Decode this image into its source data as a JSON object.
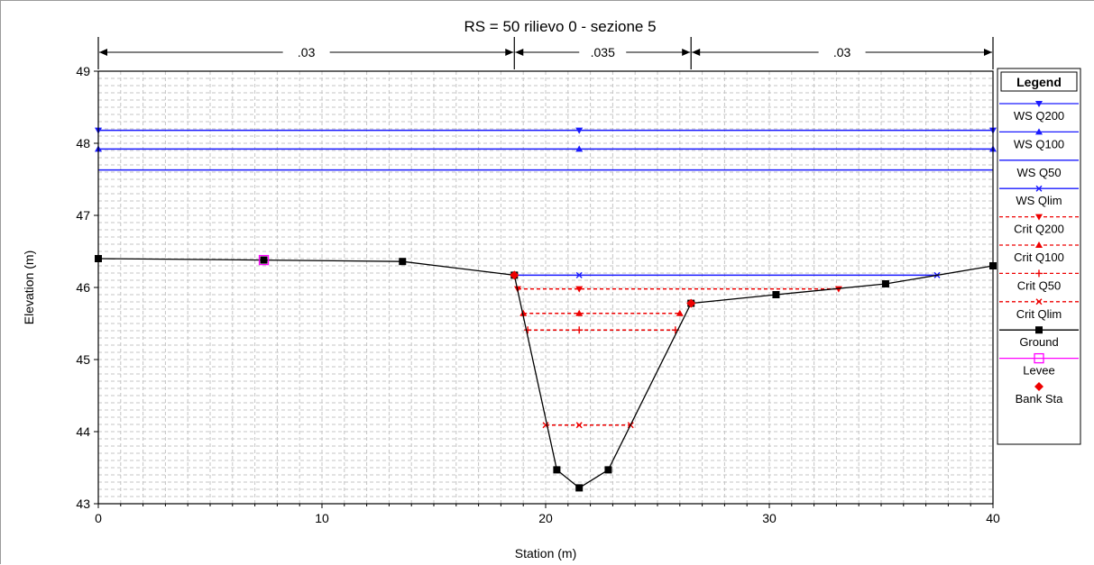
{
  "chart_data": {
    "type": "line",
    "title": "RS = 50    rilievo 0 - sezione 5",
    "xlabel": "Station (m)",
    "ylabel": "Elevation (m)",
    "xlim": [
      0,
      40
    ],
    "ylim": [
      43,
      49
    ],
    "x_ticks": [
      0,
      10,
      20,
      30,
      40
    ],
    "y_ticks": [
      43,
      44,
      45,
      46,
      47,
      48,
      49
    ],
    "grid": true,
    "legend_title": "Legend",
    "legend_position": "right",
    "manning": [
      {
        "from": 0,
        "to": 18.6,
        "label": ".03"
      },
      {
        "from": 18.6,
        "to": 26.5,
        "label": ".035"
      },
      {
        "from": 26.5,
        "to": 40,
        "label": ".03"
      }
    ],
    "series": [
      {
        "name": "WS Q200",
        "kind": "ws",
        "color": "#1a1aff",
        "marker": "tri-down",
        "elev": 48.18,
        "from": 0,
        "to": 40,
        "markers": [
          0,
          21.5,
          40
        ]
      },
      {
        "name": "WS Q100",
        "kind": "ws",
        "color": "#1a1aff",
        "marker": "tri-up",
        "elev": 47.92,
        "from": 0,
        "to": 40,
        "markers": [
          0,
          21.5,
          40
        ]
      },
      {
        "name": "WS Q50",
        "kind": "ws",
        "color": "#1a1aff",
        "marker": "none",
        "elev": 47.63,
        "from": 0,
        "to": 40,
        "markers": []
      },
      {
        "name": "WS Qlim",
        "kind": "ws",
        "color": "#1a1aff",
        "marker": "x",
        "elev": 46.17,
        "from": 18.6,
        "to": 37.5,
        "markers": [
          18.6,
          21.5,
          37.5
        ]
      },
      {
        "name": "Crit Q200",
        "kind": "crit",
        "color": "#ee0000",
        "marker": "tri-down",
        "elev": 45.98,
        "from": 18.75,
        "to": 33.1,
        "markers": [
          18.75,
          21.5,
          33.1
        ]
      },
      {
        "name": "Crit Q100",
        "kind": "crit",
        "color": "#ee0000",
        "marker": "tri-up",
        "elev": 45.64,
        "from": 19.0,
        "to": 26.0,
        "markers": [
          19.0,
          21.5,
          26.0
        ]
      },
      {
        "name": "Crit Q50",
        "kind": "crit",
        "color": "#ee0000",
        "marker": "plus",
        "elev": 45.41,
        "from": 19.2,
        "to": 25.8,
        "markers": [
          19.2,
          21.5,
          25.8
        ]
      },
      {
        "name": "Crit Qlim",
        "kind": "crit",
        "color": "#ee0000",
        "marker": "x",
        "elev": 44.09,
        "from": 20.0,
        "to": 23.8,
        "markers": [
          20.0,
          21.5,
          23.8
        ]
      },
      {
        "name": "Ground",
        "kind": "ground",
        "color": "#000000",
        "marker": "square",
        "x": [
          0,
          7.4,
          13.6,
          18.6,
          20.5,
          21.5,
          22.8,
          26.5,
          30.3,
          35.2,
          40
        ],
        "y": [
          46.4,
          46.38,
          46.36,
          46.17,
          43.47,
          43.22,
          43.47,
          45.78,
          45.9,
          46.05,
          46.3
        ]
      },
      {
        "name": "Levee",
        "kind": "levee",
        "color": "#ff00ff",
        "marker": "open-square",
        "x": [
          7.4
        ],
        "y": [
          46.38
        ]
      },
      {
        "name": "Bank Sta",
        "kind": "bank",
        "color": "#ee0000",
        "marker": "diamond",
        "x": [
          18.6,
          26.5
        ],
        "y": [
          46.17,
          45.78
        ]
      }
    ]
  }
}
